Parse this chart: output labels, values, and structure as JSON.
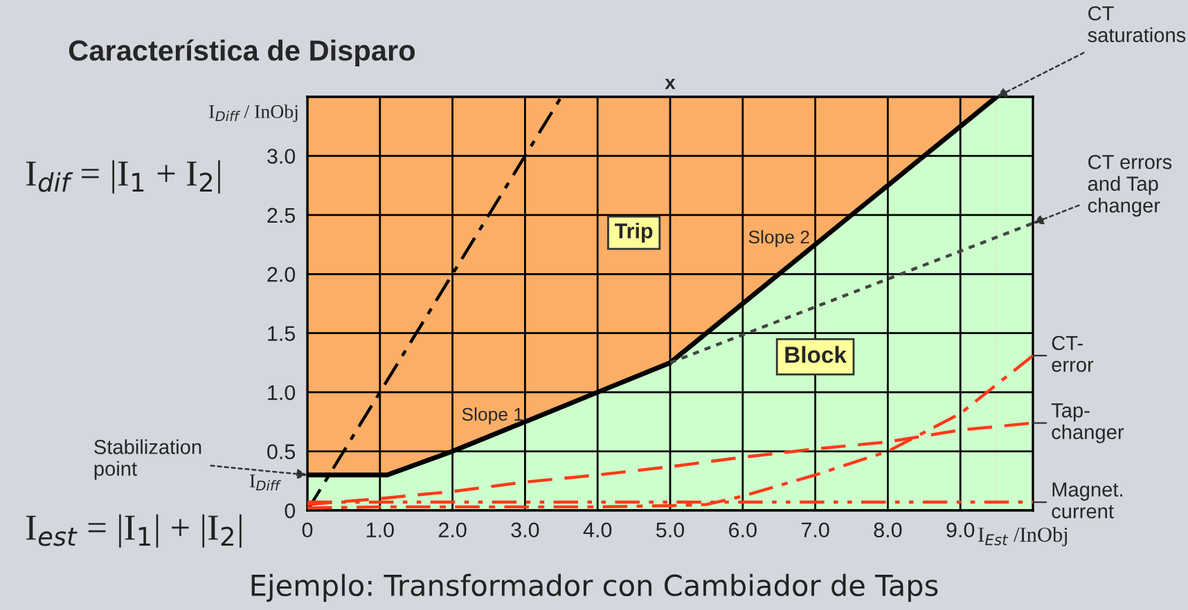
{
  "chart_data": {
    "type": "line",
    "title": "Característica de Disparo",
    "xlabel": "I$_{Est}$ /InObj",
    "ylabel": "I$_{Diff}$ / InObj",
    "xlim": [
      0,
      10
    ],
    "ylim": [
      0,
      3.5
    ],
    "xticks": [
      0,
      {
        "value": 1,
        "label": "1.0"
      },
      {
        "value": 2,
        "label": "2.0"
      },
      {
        "value": 3,
        "label": "3.0"
      },
      {
        "value": 4,
        "label": "4.0"
      },
      {
        "value": 5,
        "label": "5.0"
      },
      {
        "value": 6,
        "label": "6.0"
      },
      {
        "value": 7,
        "label": "7.0"
      },
      {
        "value": 8,
        "label": "8.0"
      },
      {
        "value": 9,
        "label": "9.0"
      }
    ],
    "yticks": [
      0,
      0.5,
      {
        "value": 1,
        "label": "1.0"
      },
      1.5,
      {
        "value": 2,
        "label": "2.0"
      },
      2.5,
      {
        "value": 3,
        "label": "3.0"
      }
    ],
    "grid": true,
    "legend": false,
    "bands": [
      {
        "axis": "y",
        "from": 0,
        "to": 3.5,
        "color": "#fdae66"
      },
      {
        "axis": "x",
        "from": 9.5,
        "to": 10,
        "color": "#ccffcc"
      }
    ],
    "series": [
      {
        "type": "area",
        "color": "#ccffcc",
        "line_style": "solid",
        "x": [
          0,
          1.1,
          2,
          4,
          5,
          9.5
        ],
        "values": [
          0.3,
          0.3,
          0.5,
          1.0,
          1.25,
          3.5
        ]
      },
      {
        "color": "#000000",
        "line_style": "dashdot",
        "x": [
          0,
          3.5
        ],
        "values": [
          0,
          3.5
        ]
      },
      {
        "color": "#444444",
        "line_style": "dotted",
        "x": [
          5,
          10
        ],
        "values": [
          1.25,
          2.43
        ]
      },
      {
        "name": "CT-\nerror",
        "color": "#ff3a1a",
        "line_style": "dashdot",
        "x": [
          0,
          1,
          2,
          3,
          4,
          5,
          5.5,
          6,
          7,
          8,
          9,
          10
        ],
        "values": [
          0.02,
          0.03,
          0.03,
          0.03,
          0.03,
          0.04,
          0.05,
          0.12,
          0.3,
          0.5,
          0.82,
          1.31
        ]
      },
      {
        "name": "Tap-\nchanger",
        "color": "#ff3a1a",
        "line_style": "dashed",
        "x": [
          0,
          1,
          2,
          3,
          4,
          5,
          6,
          7,
          8,
          9,
          10
        ],
        "values": [
          0.05,
          0.1,
          0.16,
          0.24,
          0.3,
          0.37,
          0.45,
          0.52,
          0.58,
          0.68,
          0.74
        ]
      },
      {
        "name": "Magnet.\ncurrent",
        "color": "#ff3a1a",
        "line_style": "dashdotdot",
        "x": [
          0,
          10
        ],
        "values": [
          0.07,
          0.07
        ]
      }
    ],
    "annotations": [
      "Trip",
      "Block",
      "Slope 1",
      "Slope 2",
      {
        "text": "x",
        "x": 5,
        "y": 3.5
      },
      {
        "text": "CT\nsaturations",
        "x": 9.5,
        "y": 3.5
      },
      {
        "text": "CT errors\nand Tap\nchanger",
        "x": 10,
        "y": 2.43
      },
      {
        "text": "Stabilization\npoint",
        "x": 0,
        "y": 0.3
      },
      "I$_{Diff}$",
      "I$_{dif}$ = |I$_{1}$ + I$_{2}$|",
      "I$_{est}$ = |I$_{1}$| + |I$_{2}$|",
      "Ejemplo: Transformador con Cambiador de Taps"
    ]
  }
}
